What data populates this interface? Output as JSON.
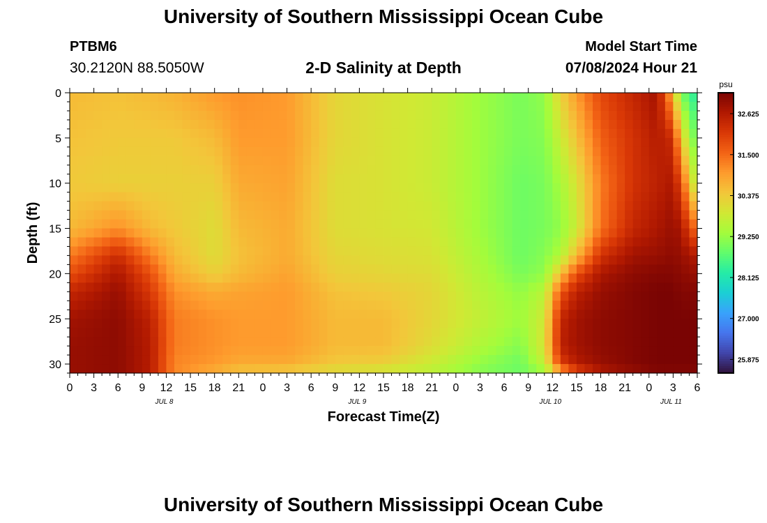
{
  "header": {
    "title": "University of Southern Mississippi Ocean Cube",
    "station": "PTBM6",
    "coords": "30.2120N  88.5050W",
    "subtitle": "2-D Salinity at Depth",
    "model_start_label": "Model Start Time",
    "model_start_value": "07/08/2024 Hour 21"
  },
  "footer": {
    "title": "University of Southern Mississippi Ocean Cube"
  },
  "chart_data": {
    "type": "heatmap",
    "xlabel": "Forecast Time(Z)",
    "ylabel": "Depth (ft)",
    "x_ticks": [
      "0",
      "3",
      "6",
      "9",
      "12",
      "15",
      "18",
      "21",
      "0",
      "3",
      "6",
      "9",
      "12",
      "15",
      "18",
      "21",
      "0",
      "3",
      "6",
      "9",
      "12",
      "15",
      "18",
      "21",
      "0",
      "3",
      "6"
    ],
    "day_labels": [
      {
        "label": "JUL 8",
        "tick_index": 4
      },
      {
        "label": "JUL 9",
        "tick_index": 12
      },
      {
        "label": "JUL 10",
        "tick_index": 20
      },
      {
        "label": "JUL 11",
        "tick_index": 25
      }
    ],
    "y_ticks": [
      0,
      5,
      10,
      15,
      20,
      25,
      30
    ],
    "ylim": [
      0,
      31
    ],
    "hours_total": 78,
    "colorbar": {
      "unit": "psu",
      "min": 25.5,
      "max": 33.2,
      "ticks": [
        "32.625",
        "31.500",
        "30.375",
        "29.250",
        "28.125",
        "27.000",
        "25.875"
      ],
      "colors": [
        "#30123b",
        "#4145ab",
        "#4675ed",
        "#39a2fc",
        "#1bcfd4",
        "#24eca6",
        "#61fc6c",
        "#a4fc3b",
        "#d1e834",
        "#f3c63a",
        "#fe9b2d",
        "#f36315",
        "#d93806",
        "#b11901",
        "#7a0403"
      ]
    },
    "salinity_profiles": [
      {
        "hour": 0,
        "depth": [
          0,
          5,
          10,
          15,
          18,
          20,
          22,
          25,
          28,
          30,
          31
        ],
        "psu": [
          30.6,
          30.5,
          30.4,
          30.6,
          31.3,
          31.8,
          32.4,
          32.8,
          32.9,
          32.9,
          32.9
        ]
      },
      {
        "hour": 6,
        "depth": [
          0,
          5,
          10,
          15,
          18,
          20,
          22,
          25,
          28,
          30,
          31
        ],
        "psu": [
          30.5,
          30.4,
          30.3,
          31.1,
          32.3,
          32.7,
          32.9,
          33.0,
          33.0,
          33.0,
          33.0
        ]
      },
      {
        "hour": 10,
        "depth": [
          0,
          5,
          10,
          15,
          18,
          20,
          22,
          25,
          28,
          30,
          31
        ],
        "psu": [
          30.6,
          30.4,
          30.3,
          30.6,
          31.3,
          31.8,
          32.1,
          32.5,
          32.6,
          32.6,
          32.6
        ]
      },
      {
        "hour": 13,
        "depth": [
          0,
          5,
          10,
          15,
          18,
          20,
          22,
          25,
          28,
          30,
          31
        ],
        "psu": [
          30.7,
          30.4,
          30.3,
          30.4,
          30.6,
          30.8,
          31.1,
          31.3,
          31.3,
          31.2,
          31.2
        ]
      },
      {
        "hour": 18,
        "depth": [
          0,
          5,
          10,
          15,
          18,
          20,
          22,
          25,
          28,
          30,
          31
        ],
        "psu": [
          31.0,
          30.6,
          30.3,
          30.1,
          30.1,
          30.3,
          30.8,
          31.1,
          31.1,
          31.0,
          30.7
        ]
      },
      {
        "hour": 21,
        "depth": [
          0,
          5,
          10,
          15,
          18,
          20,
          22,
          25,
          28,
          30,
          31
        ],
        "psu": [
          31.1,
          31.0,
          30.8,
          30.6,
          30.5,
          30.6,
          30.9,
          31.0,
          31.0,
          30.8,
          30.4
        ]
      },
      {
        "hour": 27,
        "depth": [
          0,
          5,
          10,
          15,
          18,
          20,
          22,
          25,
          28,
          30,
          31
        ],
        "psu": [
          31.0,
          31.0,
          30.9,
          30.8,
          30.8,
          30.9,
          31.0,
          31.0,
          31.0,
          30.8,
          30.3
        ]
      },
      {
        "hour": 33,
        "depth": [
          0,
          5,
          10,
          15,
          18,
          20,
          22,
          25,
          28,
          30,
          31
        ],
        "psu": [
          30.2,
          30.2,
          30.1,
          30.1,
          30.2,
          30.3,
          30.5,
          30.6,
          30.6,
          30.4,
          30.0
        ]
      },
      {
        "hour": 39,
        "depth": [
          0,
          5,
          10,
          15,
          18,
          20,
          22,
          25,
          28,
          30,
          31
        ],
        "psu": [
          30.0,
          30.0,
          30.0,
          30.0,
          30.1,
          30.2,
          30.4,
          30.6,
          30.6,
          30.3,
          29.8
        ]
      },
      {
        "hour": 45,
        "depth": [
          0,
          5,
          10,
          15,
          18,
          20,
          22,
          25,
          28,
          30,
          31
        ],
        "psu": [
          29.8,
          29.8,
          29.8,
          29.9,
          30.0,
          30.1,
          30.2,
          30.2,
          30.1,
          29.8,
          29.6
        ]
      },
      {
        "hour": 51,
        "depth": [
          0,
          5,
          10,
          15,
          18,
          20,
          22,
          25,
          28,
          30,
          31
        ],
        "psu": [
          29.3,
          29.3,
          29.3,
          29.3,
          29.4,
          29.5,
          29.6,
          29.7,
          29.5,
          29.2,
          29.1
        ]
      },
      {
        "hour": 56,
        "depth": [
          0,
          5,
          10,
          15,
          18,
          20,
          22,
          25,
          28,
          30,
          31
        ],
        "psu": [
          29.0,
          29.0,
          28.9,
          28.9,
          28.9,
          29.0,
          29.2,
          29.3,
          29.1,
          28.9,
          28.9
        ]
      },
      {
        "hour": 59,
        "depth": [
          0,
          5,
          10,
          15,
          18,
          20,
          22,
          25,
          28,
          30,
          31
        ],
        "psu": [
          29.2,
          29.1,
          29.0,
          29.0,
          29.1,
          29.2,
          29.6,
          29.9,
          30.0,
          29.7,
          29.2
        ]
      },
      {
        "hour": 61,
        "depth": [
          0,
          5,
          10,
          15,
          18,
          20,
          22,
          25,
          28,
          30,
          31
        ],
        "psu": [
          30.3,
          29.8,
          29.4,
          29.2,
          29.5,
          30.5,
          31.7,
          32.4,
          32.5,
          32.0,
          30.6
        ]
      },
      {
        "hour": 63,
        "depth": [
          0,
          5,
          10,
          15,
          18,
          20,
          22,
          25,
          28,
          30,
          31
        ],
        "psu": [
          31.0,
          30.5,
          30.0,
          29.8,
          30.6,
          31.8,
          32.5,
          32.8,
          32.8,
          32.6,
          31.8
        ]
      },
      {
        "hour": 66,
        "depth": [
          0,
          5,
          10,
          15,
          18,
          20,
          22,
          25,
          28,
          30,
          31
        ],
        "psu": [
          31.9,
          31.6,
          31.3,
          31.4,
          32.2,
          32.7,
          32.9,
          33.0,
          33.0,
          32.9,
          32.6
        ]
      },
      {
        "hour": 70,
        "depth": [
          0,
          5,
          10,
          15,
          18,
          20,
          22,
          25,
          28,
          30,
          31
        ],
        "psu": [
          32.4,
          32.2,
          32.2,
          32.4,
          32.8,
          33.0,
          33.1,
          33.1,
          33.1,
          33.1,
          32.9
        ]
      },
      {
        "hour": 73,
        "depth": [
          0,
          5,
          10,
          15,
          18,
          20,
          22,
          25,
          28,
          30,
          31
        ],
        "psu": [
          32.8,
          32.6,
          32.5,
          32.7,
          32.9,
          33.1,
          33.2,
          33.2,
          33.2,
          33.2,
          33.1
        ]
      },
      {
        "hour": 75,
        "depth": [
          0,
          5,
          10,
          15,
          18,
          20,
          22,
          25,
          28,
          30,
          31
        ],
        "psu": [
          30.6,
          32.3,
          32.7,
          32.9,
          33.0,
          33.1,
          33.2,
          33.2,
          33.2,
          33.2,
          33.1
        ]
      },
      {
        "hour": 76,
        "depth": [
          0,
          5,
          10,
          15,
          18,
          20,
          22,
          25,
          28,
          30,
          31
        ],
        "psu": [
          29.0,
          30.3,
          31.8,
          32.7,
          32.9,
          33.0,
          33.1,
          33.2,
          33.2,
          33.2,
          33.1
        ]
      },
      {
        "hour": 78,
        "depth": [
          0,
          5,
          10,
          15,
          18,
          20,
          22,
          25,
          28,
          30,
          31
        ],
        "psu": [
          28.2,
          28.7,
          29.3,
          31.3,
          32.6,
          32.9,
          33.1,
          33.2,
          33.2,
          33.2,
          33.1
        ]
      }
    ]
  }
}
